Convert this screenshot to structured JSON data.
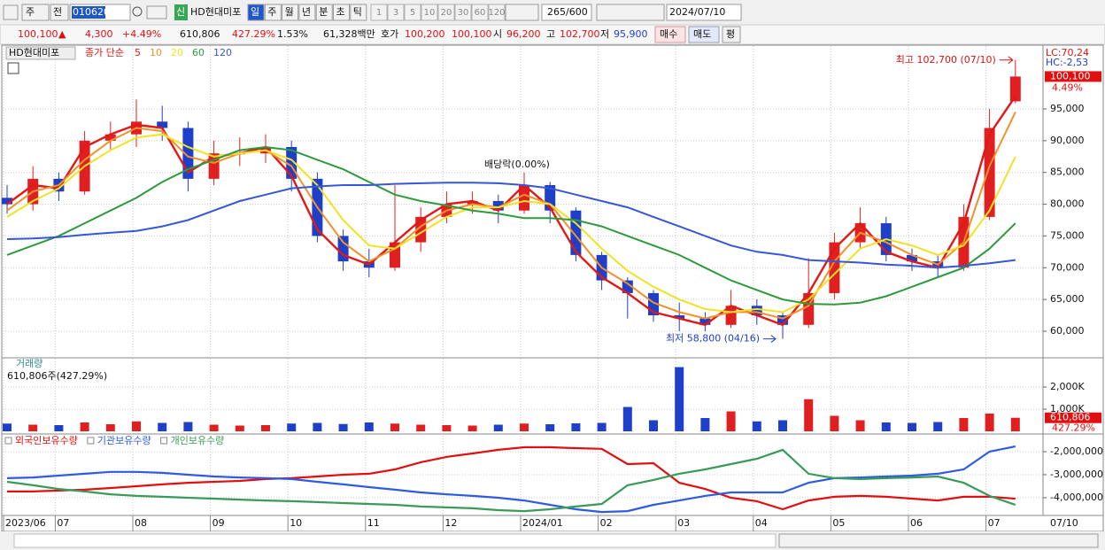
{
  "toolbar": {
    "period_type": "주",
    "market": "전",
    "code": "010620",
    "badge": "신",
    "name": "HD현대미포",
    "intervals": [
      "일",
      "주",
      "월",
      "년",
      "분",
      "초",
      "틱"
    ],
    "counts": [
      "1",
      "3",
      "5",
      "10",
      "20",
      "30",
      "60",
      "120"
    ],
    "range": "265/600",
    "date": "2024/07/10"
  },
  "quote": {
    "price": "100,100",
    "arrow": "▲",
    "change": "4,300",
    "rate": "+4.49%",
    "volume": "610,806",
    "volume_ratio": "427.29%",
    "turnover": "1.53%",
    "amount": "61,328백만",
    "ask_label": "호가",
    "ask": "100,200",
    "bid": "100,100",
    "open_label": "시",
    "open": "96,200",
    "high_label": "고",
    "high": "102,700",
    "low_label": "저",
    "low": "95,900",
    "buy": "매수",
    "sell": "매도",
    "avg": "평"
  },
  "last_date_label": "07/10",
  "chart_data": [
    {
      "type": "candlestick",
      "title": "HD현대미포",
      "ma_label": "종가 단순",
      "up_color": "#e02020",
      "down_color": "#1e3fc8",
      "categories": [
        "2023/06",
        null,
        "07",
        null,
        null,
        "08",
        null,
        null,
        "09",
        null,
        null,
        "10",
        null,
        null,
        "11",
        null,
        null,
        "12",
        null,
        null,
        "2024/01",
        null,
        null,
        "02",
        null,
        null,
        "03",
        null,
        null,
        "04",
        null,
        null,
        "05",
        null,
        null,
        "06",
        null,
        null,
        "07",
        null
      ],
      "open": [
        81000,
        80000,
        84000,
        82000,
        90000,
        91000,
        93000,
        92000,
        84000,
        88000,
        88000,
        89000,
        84000,
        75000,
        71000,
        70000,
        74000,
        78000,
        80000,
        80500,
        79000,
        83000,
        79000,
        72000,
        68000,
        66000,
        62500,
        62000,
        61000,
        64000,
        62500,
        61000,
        66000,
        74000,
        77000,
        72000,
        71000,
        70000,
        78000,
        96200
      ],
      "high": [
        83000,
        86000,
        85000,
        91500,
        93000,
        96500,
        95500,
        93000,
        90000,
        90500,
        91000,
        90000,
        85000,
        76000,
        73000,
        83000,
        79500,
        82000,
        82000,
        81500,
        85000,
        83500,
        79500,
        72500,
        68500,
        66500,
        64500,
        63000,
        66500,
        65000,
        63000,
        71500,
        75500,
        79500,
        78000,
        73000,
        72000,
        80000,
        95000,
        102700
      ],
      "low": [
        78500,
        79000,
        80500,
        81500,
        88500,
        89000,
        90000,
        82000,
        83000,
        86000,
        86500,
        82000,
        74000,
        69500,
        68500,
        69500,
        72500,
        77000,
        78500,
        77000,
        78500,
        77000,
        71000,
        66500,
        62000,
        61500,
        60000,
        60000,
        60500,
        61000,
        58800,
        60500,
        65000,
        73000,
        71000,
        69500,
        68500,
        69500,
        77500,
        95900
      ],
      "close": [
        80000,
        84000,
        82000,
        90000,
        91000,
        93000,
        92000,
        84000,
        88000,
        88000,
        89000,
        84000,
        75000,
        71000,
        70000,
        74000,
        78000,
        80000,
        80500,
        79000,
        83000,
        79000,
        72000,
        68000,
        66000,
        62500,
        62000,
        61000,
        64000,
        62500,
        61000,
        66000,
        74000,
        77000,
        72000,
        71000,
        70000,
        78000,
        92000,
        100100
      ],
      "series": [
        {
          "name": "5",
          "color": "#e01818",
          "values": [
            80000,
            83000,
            82500,
            89000,
            91000,
            92500,
            92000,
            85000,
            87500,
            88000,
            89000,
            84500,
            76000,
            72000,
            70500,
            74000,
            77500,
            80000,
            80500,
            79000,
            83000,
            79500,
            72500,
            68500,
            66000,
            63000,
            62000,
            61000,
            64000,
            62500,
            61000,
            66000,
            73000,
            77000,
            72500,
            71000,
            70000,
            77000,
            91000,
            97000
          ]
        },
        {
          "name": "10",
          "color": "#f0912a",
          "values": [
            79000,
            82000,
            83000,
            87000,
            90000,
            92000,
            91500,
            87500,
            86500,
            88000,
            88500,
            86000,
            79500,
            74000,
            71000,
            73000,
            76500,
            79000,
            80000,
            79500,
            81500,
            80000,
            75000,
            70000,
            67500,
            64500,
            63000,
            62000,
            63000,
            63000,
            62000,
            64000,
            71000,
            75500,
            74000,
            72000,
            70500,
            74000,
            86000,
            94500
          ]
        },
        {
          "name": "20",
          "color": "#f2e224",
          "values": [
            78000,
            80500,
            82500,
            86000,
            88500,
            90500,
            91000,
            89000,
            87500,
            88000,
            88500,
            87000,
            83000,
            77500,
            73500,
            73000,
            75500,
            78000,
            79500,
            79500,
            80500,
            80000,
            77000,
            73000,
            69500,
            67000,
            65000,
            63500,
            63000,
            63500,
            63000,
            65000,
            69000,
            73000,
            74500,
            73500,
            72000,
            73500,
            79000,
            87500
          ]
        },
        {
          "name": "60",
          "color": "#2e9a3c",
          "values": [
            72000,
            73500,
            75000,
            77000,
            79000,
            81000,
            83500,
            85500,
            87000,
            88500,
            89000,
            88500,
            87000,
            85500,
            83500,
            81500,
            80500,
            79800,
            79000,
            78500,
            77800,
            77800,
            77500,
            76500,
            75000,
            73500,
            72000,
            70000,
            68000,
            66500,
            65000,
            64300,
            64200,
            64500,
            65500,
            67000,
            68500,
            70000,
            73000,
            77000
          ]
        },
        {
          "name": "120",
          "color": "#3557d8",
          "values": [
            74500,
            74600,
            74800,
            75200,
            75500,
            75800,
            76500,
            77500,
            79000,
            80500,
            81500,
            82500,
            82800,
            83000,
            83000,
            83200,
            83300,
            83400,
            83400,
            83300,
            83000,
            82500,
            81500,
            80500,
            79500,
            78000,
            76500,
            75000,
            73500,
            72500,
            72000,
            71200,
            71000,
            70800,
            70500,
            70300,
            70000,
            70300,
            70700,
            71200
          ]
        }
      ],
      "ylim": [
        55950,
        104900
      ],
      "yticks": [
        {
          "value": 60000,
          "label": "60,000"
        },
        {
          "value": 65000,
          "label": "65,000"
        },
        {
          "value": 70000,
          "label": "70,000"
        },
        {
          "value": 75000,
          "label": "75,000"
        },
        {
          "value": 80000,
          "label": "80,000"
        },
        {
          "value": 85000,
          "label": "85,000"
        },
        {
          "value": 90000,
          "label": "90,000"
        },
        {
          "value": 95000,
          "label": "95,000"
        }
      ],
      "high_annotation": "최고 102,700 (07/10)",
      "low_annotation": "최저 58,800 (04/16)",
      "dividend_annotation": "배당락(0.00%)",
      "lc_label": "LC:70,24",
      "hc_label": "HC:-2,53",
      "last_price_label": "100,100",
      "last_rate_label": "4.49%"
    },
    {
      "type": "bar",
      "title": "거래량",
      "subtitle": "610,806주(427.29%)",
      "values": [
        350000,
        300000,
        280000,
        400000,
        320000,
        450000,
        380000,
        420000,
        300000,
        260000,
        280000,
        350000,
        380000,
        330000,
        400000,
        350000,
        300000,
        280000,
        260000,
        300000,
        350000,
        320000,
        360000,
        380000,
        1100000,
        500000,
        2900000,
        600000,
        900000,
        450000,
        500000,
        1450000,
        700000,
        500000,
        400000,
        380000,
        420000,
        600000,
        800000,
        610806
      ],
      "ylim": [
        0,
        3280000
      ],
      "yticks": [
        {
          "value": 1000000,
          "label": "1,000K"
        },
        {
          "value": 2000000,
          "label": "2,000K"
        }
      ],
      "last_value_label": "610,806",
      "last_ratio_label": "427.29%"
    },
    {
      "type": "line",
      "series": [
        {
          "name": "외국인보유수량",
          "color": "#e01010",
          "values": [
            -3730000,
            -3730000,
            -3690000,
            -3650000,
            -3580000,
            -3500000,
            -3420000,
            -3350000,
            -3310000,
            -3270000,
            -3190000,
            -3150000,
            -3080000,
            -3000000,
            -2960000,
            -2770000,
            -2460000,
            -2230000,
            -2080000,
            -1920000,
            -1810000,
            -1810000,
            -1850000,
            -1880000,
            -2540000,
            -2500000,
            -3350000,
            -3620000,
            -4000000,
            -4150000,
            -4500000,
            -4120000,
            -3960000,
            -3920000,
            -3960000,
            -4040000,
            -4120000,
            -3960000,
            -3960000,
            -4040000
          ]
        },
        {
          "name": "기관보유수량",
          "color": "#2f5be0",
          "values": [
            -3150000,
            -3120000,
            -3040000,
            -2960000,
            -2880000,
            -2880000,
            -2920000,
            -3000000,
            -3080000,
            -3120000,
            -3150000,
            -3190000,
            -3310000,
            -3420000,
            -3540000,
            -3650000,
            -3770000,
            -3850000,
            -3920000,
            -4000000,
            -4120000,
            -4310000,
            -4500000,
            -4620000,
            -4580000,
            -4310000,
            -4120000,
            -3920000,
            -3770000,
            -3770000,
            -3770000,
            -3350000,
            -3150000,
            -3120000,
            -3080000,
            -3040000,
            -2960000,
            -2770000,
            -2000000,
            -1770000
          ]
        },
        {
          "name": "개인보유수량",
          "color": "#3a9a5a",
          "values": [
            -3310000,
            -3460000,
            -3620000,
            -3730000,
            -3850000,
            -3920000,
            -3960000,
            -4000000,
            -4040000,
            -4080000,
            -4120000,
            -4150000,
            -4190000,
            -4230000,
            -4270000,
            -4310000,
            -4380000,
            -4420000,
            -4460000,
            -4540000,
            -4580000,
            -4500000,
            -4380000,
            -4270000,
            -3460000,
            -3230000,
            -2960000,
            -2770000,
            -2540000,
            -2310000,
            -1920000,
            -2960000,
            -3150000,
            -3190000,
            -3150000,
            -3120000,
            -3080000,
            -3350000,
            -3920000,
            -4310000
          ]
        }
      ],
      "ylim": [
        -4770000,
        -1310000
      ],
      "yticks": [
        {
          "value": -2000000,
          "label": "-2,000,000"
        },
        {
          "value": -3000000,
          "label": "-3,000,000"
        },
        {
          "value": -4000000,
          "label": "-4,000,000"
        }
      ]
    }
  ]
}
